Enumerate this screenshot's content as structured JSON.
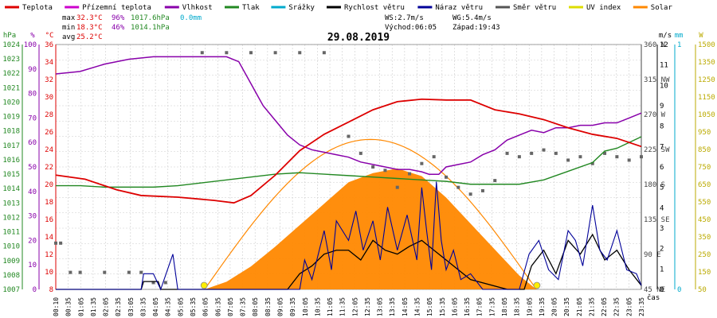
{
  "legend": [
    {
      "label": "Teplota",
      "color": "#dd0000"
    },
    {
      "label": "Přízemní teplota",
      "color": "#cc00cc"
    },
    {
      "label": "Vlhkost",
      "color": "#8800aa"
    },
    {
      "label": "Tlak",
      "color": "#228822"
    },
    {
      "label": "Srážky",
      "color": "#00aacc"
    },
    {
      "label": "Rychlost větru",
      "color": "#000000"
    },
    {
      "label": "Náraz větru",
      "color": "#000099"
    },
    {
      "label": "Směr větru",
      "color": "#555555"
    },
    {
      "label": "UV index",
      "color": "#dddd00"
    },
    {
      "label": "Solar",
      "color": "#ff8800"
    }
  ],
  "stats": {
    "max_label": "max",
    "max_temp": "32.3°C",
    "max_hum": "96%",
    "max_press": "1017.6hPa",
    "rain": "0.0mm",
    "min_label": "min",
    "min_temp": "18.3°C",
    "min_hum": "46%",
    "min_press": "1014.1hPa",
    "avg_label": "avg",
    "avg_temp": "25.2°C",
    "ws": "WS:2.7m/s",
    "wg": "WG:5.4m/s",
    "sunrise": "Východ:06:05",
    "sunset": "Západ:19:43"
  },
  "colors": {
    "temp": "#dd0000",
    "humidity": "#8800aa",
    "pressure": "#228822",
    "wind": "#000000",
    "gust": "#000099",
    "direction": "#666666",
    "uv": "#dddd00",
    "solar": "#ff8800",
    "rain": "#00aacc",
    "grid": "#cccccc"
  },
  "chart_data": {
    "type": "line",
    "title": "29.08.2019",
    "xlabel": "čas",
    "x_ticks": [
      "00:10",
      "00:35",
      "01:05",
      "01:35",
      "02:05",
      "02:35",
      "03:05",
      "03:35",
      "04:05",
      "04:35",
      "05:05",
      "05:35",
      "06:05",
      "06:35",
      "07:05",
      "07:35",
      "08:05",
      "08:35",
      "09:05",
      "09:35",
      "10:05",
      "10:35",
      "11:05",
      "11:35",
      "12:05",
      "12:35",
      "13:05",
      "13:35",
      "14:05",
      "14:35",
      "15:05",
      "15:35",
      "16:05",
      "16:35",
      "17:05",
      "17:35",
      "18:05",
      "18:35",
      "19:05",
      "19:35",
      "20:05",
      "20:35",
      "21:05",
      "21:35",
      "22:05",
      "22:35",
      "23:05",
      "23:35"
    ],
    "axes": {
      "hpa": {
        "label": "hPa",
        "ticks": [
          "1024",
          "1023",
          "1022",
          "1021",
          "1020",
          "1019",
          "1018",
          "1017",
          "1016",
          "1015",
          "1014",
          "1013",
          "1012",
          "1011",
          "1010",
          "1009",
          "1008",
          "1007"
        ],
        "range": [
          1007,
          1024
        ]
      },
      "percent": {
        "label": "%",
        "ticks": [
          "100",
          "90",
          "80",
          "70",
          "60",
          "50",
          "40",
          "30",
          "20",
          "10",
          "0"
        ],
        "range": [
          0,
          100
        ]
      },
      "celsius": {
        "label": "°C",
        "ticks": [
          "36",
          "34",
          "32",
          "30",
          "28",
          "26",
          "24",
          "22",
          "20",
          "18",
          "16",
          "14",
          "12",
          "10",
          "8"
        ],
        "range": [
          8,
          38
        ]
      },
      "direction": {
        "ticks": [
          "360 N",
          "315 NW",
          "270 W",
          "225 SW",
          "180 S",
          "135 SE",
          "90 E",
          "45 NE"
        ],
        "range": [
          0,
          360
        ]
      },
      "ms": {
        "label": "m/s",
        "ticks": [
          "12",
          "11",
          "10",
          "9",
          "8",
          "7",
          "6",
          "5",
          "4",
          "3",
          "2",
          "1",
          "0"
        ],
        "range": [
          0,
          12.5
        ]
      },
      "mm": {
        "label": "mm",
        "ticks": [
          "1",
          "0"
        ],
        "range": [
          0,
          1.05
        ]
      },
      "wm2": {
        "label": "W",
        "ticks": [
          "1500",
          "1350",
          "1250",
          "1150",
          "1050",
          "950",
          "850",
          "750",
          "650",
          "550",
          "450",
          "350",
          "250",
          "150",
          "50"
        ],
        "range": [
          0,
          1600
        ]
      }
    },
    "series": [
      {
        "name": "Teplota",
        "axis": "celsius",
        "points": [
          [
            0,
            22
          ],
          [
            1.2,
            21.5
          ],
          [
            2.5,
            20.2
          ],
          [
            3.5,
            19.5
          ],
          [
            5,
            19.3
          ],
          [
            6.5,
            18.9
          ],
          [
            7.3,
            18.6
          ],
          [
            8,
            19.5
          ],
          [
            9,
            22
          ],
          [
            10,
            25
          ],
          [
            11,
            27
          ],
          [
            12,
            28.5
          ],
          [
            13,
            30
          ],
          [
            14,
            31
          ],
          [
            15,
            31.3
          ],
          [
            16,
            31.2
          ],
          [
            17,
            31.2
          ],
          [
            18,
            30
          ],
          [
            19,
            29.5
          ],
          [
            20,
            28.8
          ],
          [
            21,
            27.8
          ],
          [
            22,
            27
          ],
          [
            23,
            26.5
          ],
          [
            24,
            25.5
          ]
        ]
      },
      {
        "name": "Vlhkost",
        "axis": "percent",
        "points": [
          [
            0,
            88
          ],
          [
            1,
            89
          ],
          [
            2,
            92
          ],
          [
            3,
            94
          ],
          [
            4,
            95
          ],
          [
            5,
            95
          ],
          [
            6,
            95
          ],
          [
            7,
            95
          ],
          [
            7.5,
            93
          ],
          [
            8,
            84
          ],
          [
            8.5,
            75
          ],
          [
            9,
            69
          ],
          [
            9.5,
            63
          ],
          [
            10,
            59
          ],
          [
            10.5,
            57
          ],
          [
            11,
            56
          ],
          [
            11.5,
            55
          ],
          [
            12,
            54
          ],
          [
            12.5,
            52
          ],
          [
            13,
            51
          ],
          [
            13.5,
            50
          ],
          [
            14,
            49
          ],
          [
            14.5,
            49
          ],
          [
            15,
            48
          ],
          [
            15.3,
            47
          ],
          [
            15.7,
            47
          ],
          [
            16,
            50
          ],
          [
            16.5,
            51
          ],
          [
            17,
            52
          ],
          [
            17.5,
            55
          ],
          [
            18,
            57
          ],
          [
            18.5,
            61
          ],
          [
            19,
            63
          ],
          [
            19.5,
            65
          ],
          [
            20,
            64
          ],
          [
            20.5,
            66
          ],
          [
            21,
            66
          ],
          [
            21.5,
            67
          ],
          [
            22,
            67
          ],
          [
            22.5,
            68
          ],
          [
            23,
            68
          ],
          [
            23.5,
            70
          ],
          [
            24,
            72
          ]
        ]
      },
      {
        "name": "Tlak",
        "axis": "hpa",
        "points": [
          [
            0,
            1014.2
          ],
          [
            1,
            1014.2
          ],
          [
            2,
            1014.1
          ],
          [
            3,
            1014.1
          ],
          [
            4,
            1014.1
          ],
          [
            5,
            1014.2
          ],
          [
            6,
            1014.4
          ],
          [
            7,
            1014.6
          ],
          [
            8,
            1014.8
          ],
          [
            9,
            1015.0
          ],
          [
            10,
            1015.1
          ],
          [
            11,
            1015.0
          ],
          [
            12,
            1014.9
          ],
          [
            13,
            1014.8
          ],
          [
            14,
            1014.7
          ],
          [
            15,
            1014.6
          ],
          [
            16,
            1014.5
          ],
          [
            17,
            1014.3
          ],
          [
            18,
            1014.3
          ],
          [
            19,
            1014.3
          ],
          [
            20,
            1014.6
          ],
          [
            21,
            1015.2
          ],
          [
            22,
            1015.8
          ],
          [
            22.5,
            1016.6
          ],
          [
            23,
            1016.8
          ],
          [
            24,
            1017.6
          ]
        ]
      },
      {
        "name": "Rychlost větru",
        "axis": "ms",
        "points": [
          [
            0,
            0
          ],
          [
            3.5,
            0
          ],
          [
            3.6,
            0.4
          ],
          [
            4.2,
            0.4
          ],
          [
            4.3,
            0
          ],
          [
            9.5,
            0
          ],
          [
            10,
            0.8
          ],
          [
            10.5,
            1.2
          ],
          [
            11,
            1.8
          ],
          [
            11.5,
            2
          ],
          [
            12,
            2
          ],
          [
            12.5,
            1.5
          ],
          [
            13,
            2.5
          ],
          [
            13.5,
            2
          ],
          [
            14,
            1.8
          ],
          [
            14.5,
            2.2
          ],
          [
            15,
            2.5
          ],
          [
            15.5,
            2
          ],
          [
            16,
            1.5
          ],
          [
            16.5,
            1
          ],
          [
            17,
            0.5
          ],
          [
            18.5,
            0
          ],
          [
            19.2,
            0
          ],
          [
            19.5,
            1.2
          ],
          [
            20,
            2
          ],
          [
            20.5,
            0.8
          ],
          [
            21,
            2.5
          ],
          [
            21.5,
            1.8
          ],
          [
            22,
            2.8
          ],
          [
            22.5,
            1.5
          ],
          [
            23,
            2
          ],
          [
            23.5,
            1
          ],
          [
            24,
            0.2
          ]
        ]
      },
      {
        "name": "Náraz větru",
        "axis": "ms",
        "points": [
          [
            0,
            0
          ],
          [
            3.5,
            0
          ],
          [
            3.6,
            0.8
          ],
          [
            4,
            0.8
          ],
          [
            4.3,
            0
          ],
          [
            4.8,
            1.8
          ],
          [
            5,
            0
          ],
          [
            10,
            0
          ],
          [
            10.2,
            1.5
          ],
          [
            10.5,
            0.5
          ],
          [
            11,
            3
          ],
          [
            11.3,
            1
          ],
          [
            11.5,
            3.5
          ],
          [
            12,
            2.5
          ],
          [
            12.3,
            4
          ],
          [
            12.6,
            2
          ],
          [
            13,
            3.5
          ],
          [
            13.3,
            1.5
          ],
          [
            13.6,
            4.2
          ],
          [
            14,
            2
          ],
          [
            14.4,
            3.8
          ],
          [
            14.8,
            1.5
          ],
          [
            15,
            5.2
          ],
          [
            15.2,
            3
          ],
          [
            15.4,
            1
          ],
          [
            15.6,
            5.5
          ],
          [
            15.8,
            2.5
          ],
          [
            16,
            1
          ],
          [
            16.3,
            2
          ],
          [
            16.6,
            0.5
          ],
          [
            17,
            0.8
          ],
          [
            17.5,
            0
          ],
          [
            19,
            0
          ],
          [
            19.4,
            1.8
          ],
          [
            19.8,
            2.5
          ],
          [
            20.2,
            1
          ],
          [
            20.6,
            0.5
          ],
          [
            21,
            3
          ],
          [
            21.3,
            2.5
          ],
          [
            21.6,
            1.2
          ],
          [
            22,
            4.3
          ],
          [
            22.3,
            2
          ],
          [
            22.6,
            1.5
          ],
          [
            23,
            3
          ],
          [
            23.4,
            1
          ],
          [
            23.8,
            0.8
          ],
          [
            24,
            0.2
          ]
        ]
      },
      {
        "name": "Směr větru",
        "axis": "direction",
        "points": [
          [
            0,
            68
          ],
          [
            0.2,
            68
          ],
          [
            0.6,
            25
          ],
          [
            1,
            25
          ],
          [
            2,
            25
          ],
          [
            3,
            25
          ],
          [
            3.5,
            25
          ],
          [
            4,
            10
          ],
          [
            4.5,
            10
          ],
          [
            6,
            348
          ],
          [
            7,
            348
          ],
          [
            8,
            348
          ],
          [
            9,
            348
          ],
          [
            10,
            348
          ],
          [
            11,
            348
          ],
          [
            12,
            225
          ],
          [
            12.5,
            200
          ],
          [
            13,
            180
          ],
          [
            13.5,
            175
          ],
          [
            14,
            150
          ],
          [
            14.5,
            170
          ],
          [
            15,
            185
          ],
          [
            15.5,
            195
          ],
          [
            16,
            165
          ],
          [
            16.5,
            150
          ],
          [
            17,
            140
          ],
          [
            17.5,
            145
          ],
          [
            18,
            160
          ],
          [
            18.5,
            200
          ],
          [
            19,
            195
          ],
          [
            19.5,
            200
          ],
          [
            20,
            205
          ],
          [
            20.5,
            200
          ],
          [
            21,
            190
          ],
          [
            21.5,
            195
          ],
          [
            22,
            185
          ],
          [
            22.5,
            200
          ],
          [
            23,
            195
          ],
          [
            23.5,
            190
          ],
          [
            24,
            195
          ]
        ]
      },
      {
        "name": "Solar",
        "axis": "wm2",
        "points": [
          [
            6.1,
            0
          ],
          [
            7,
            50
          ],
          [
            8,
            150
          ],
          [
            9,
            280
          ],
          [
            10,
            420
          ],
          [
            11,
            560
          ],
          [
            12,
            700
          ],
          [
            13,
            760
          ],
          [
            14,
            790
          ],
          [
            15,
            740
          ],
          [
            16,
            600
          ],
          [
            17,
            430
          ],
          [
            18,
            260
          ],
          [
            19,
            90
          ],
          [
            19.7,
            0
          ]
        ]
      }
    ]
  }
}
